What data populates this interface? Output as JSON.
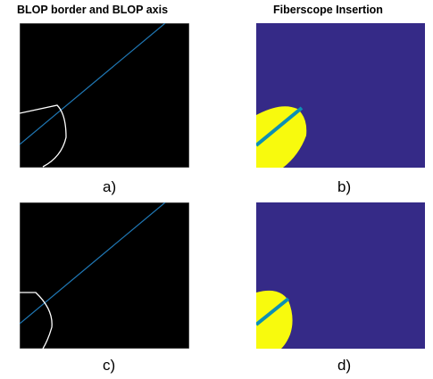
{
  "figure": {
    "titles": {
      "left": "BLOP border and BLOP axis",
      "right": "Fiberscope Insertion"
    },
    "captions": [
      "a)",
      "b)",
      "c)",
      "d)"
    ],
    "colors": {
      "background_black": "#000000",
      "background_purple": "#352a87",
      "blob_yellow": "#f8fa0d",
      "axis_line": "#1f77b4",
      "axis_line_thick": "#0d8fb4",
      "border_white": "#ffffff",
      "frame": "#808080"
    }
  }
}
